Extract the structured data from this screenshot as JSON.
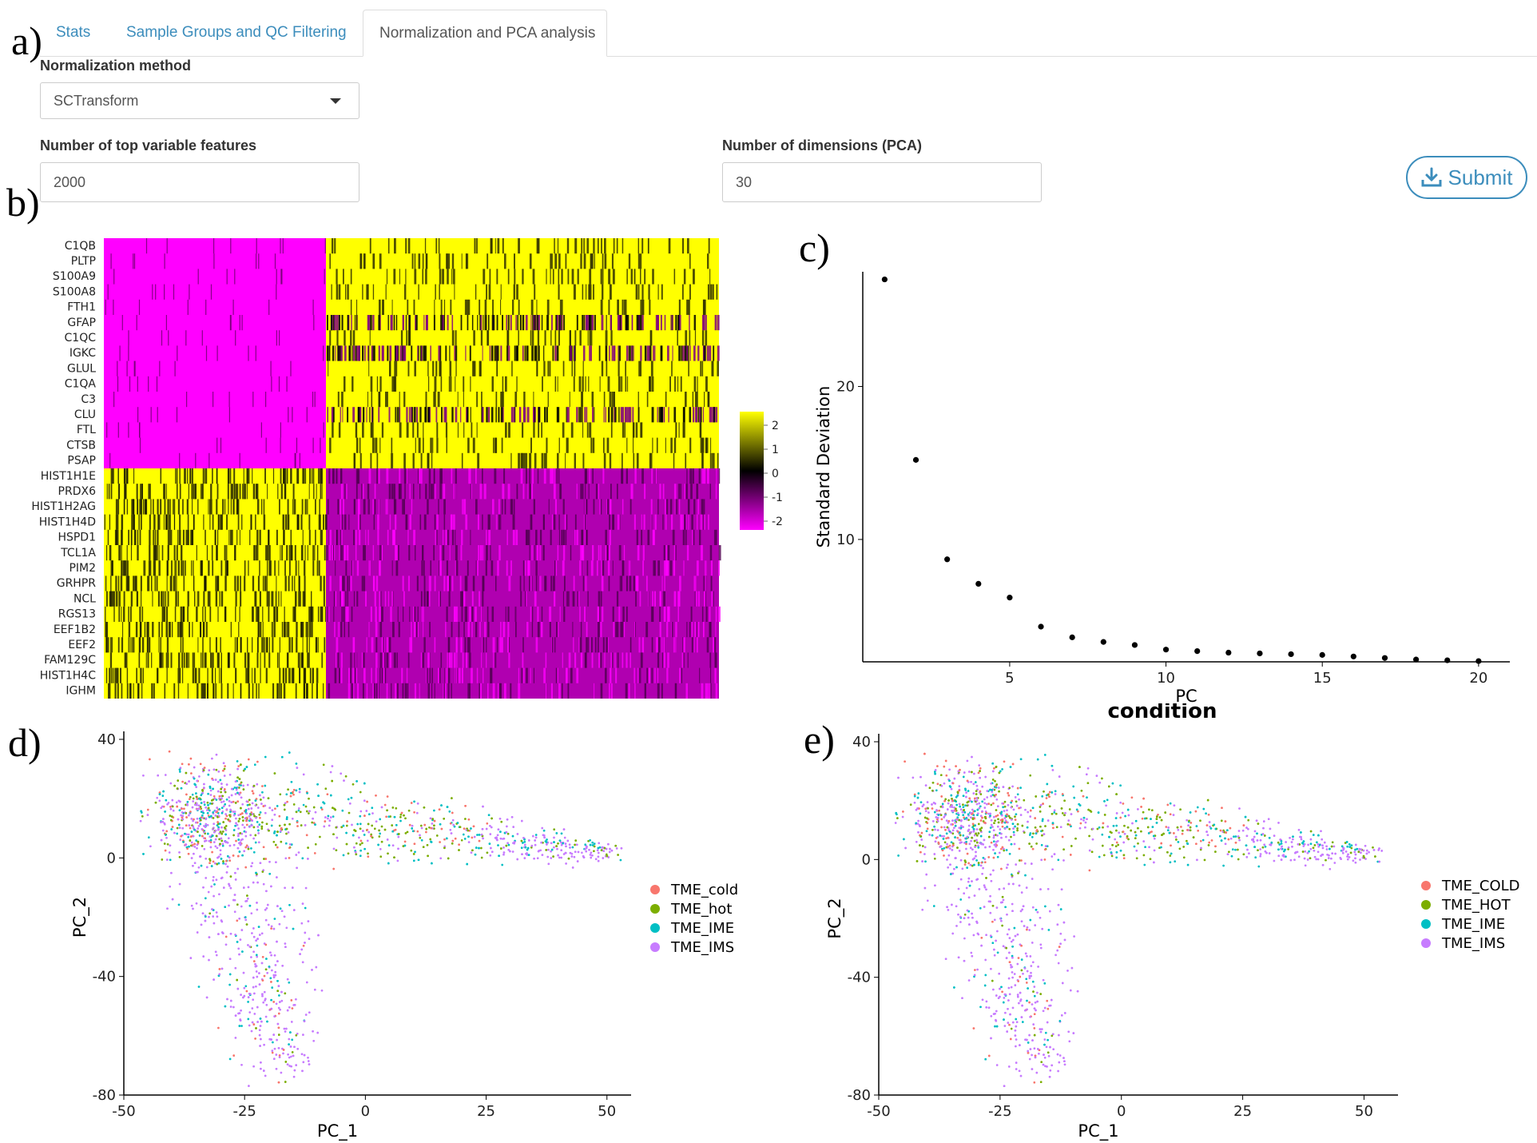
{
  "panel_letters": {
    "a": "a)",
    "b": "b)",
    "c": "c)",
    "d": "d)",
    "e": "e)"
  },
  "tabs": [
    {
      "label": "Stats",
      "active": false
    },
    {
      "label": "Sample Groups and QC Filtering",
      "active": false
    },
    {
      "label": "Normalization and PCA analysis",
      "active": true
    }
  ],
  "form": {
    "normalization": {
      "label": "Normalization method",
      "value": "SCTransform"
    },
    "top_features": {
      "label": "Number of top variable features",
      "value": "2000"
    },
    "pca_dims": {
      "label": "Number of dimensions (PCA)",
      "value": "30"
    },
    "submit_label": "Submit"
  },
  "colors": {
    "link": "#3c8dbc",
    "heat_high": "#ffff00",
    "heat_mid": "#000000",
    "heat_low": "#ff00ff",
    "series": {
      "cold": "#F8766D",
      "hot": "#7CAE00",
      "ime": "#00BFC4",
      "ims": "#C77CFF"
    }
  },
  "heatmap": {
    "genes": [
      "C1QB",
      "PLTP",
      "S100A9",
      "S100A8",
      "FTH1",
      "GFAP",
      "C1QC",
      "IGKC",
      "GLUL",
      "C1QA",
      "C3",
      "CLU",
      "FTL",
      "CTSB",
      "PSAP",
      "HIST1H1E",
      "PRDX6",
      "HIST1H2AG",
      "HIST1H4D",
      "HSPD1",
      "TCL1A",
      "PIM2",
      "GRHPR",
      "NCL",
      "RGS13",
      "EEF1B2",
      "EEF2",
      "FAM129C",
      "HIST1H4C",
      "IGHM"
    ],
    "legend_ticks": [
      "2",
      "1",
      "0",
      "-1",
      "-2"
    ]
  },
  "chart_data": [
    {
      "type": "scatter",
      "panel": "c",
      "title": "",
      "xlabel": "PC",
      "ylabel": "Standard Deviation",
      "xlim": [
        0.3,
        21
      ],
      "ylim": [
        2.0,
        27.5
      ],
      "xticks": [
        "5",
        "10",
        "15",
        "20"
      ],
      "yticks": [
        "10",
        "20"
      ],
      "x": [
        1,
        2,
        3,
        4,
        5,
        6,
        7,
        8,
        9,
        10,
        11,
        12,
        13,
        14,
        15,
        16,
        17,
        18,
        19,
        20
      ],
      "y": [
        27.0,
        15.2,
        8.7,
        7.1,
        6.2,
        4.3,
        3.6,
        3.3,
        3.1,
        2.8,
        2.7,
        2.6,
        2.55,
        2.5,
        2.45,
        2.35,
        2.25,
        2.15,
        2.1,
        2.05
      ]
    },
    {
      "type": "scatter",
      "panel": "d",
      "title": "",
      "xlabel": "PC_1",
      "ylabel": "PC_2",
      "xlim": [
        -50,
        55
      ],
      "ylim": [
        -80,
        40
      ],
      "xticks": [
        "-50",
        "-25",
        "0",
        "25",
        "50"
      ],
      "yticks": [
        "40",
        "0",
        "-40",
        "-80"
      ],
      "series": [
        {
          "name": "TME_cold",
          "color": "#F8766D"
        },
        {
          "name": "TME_hot",
          "color": "#7CAE00"
        },
        {
          "name": "TME_IME",
          "color": "#00BFC4"
        },
        {
          "name": "TME_IMS",
          "color": "#C77CFF"
        }
      ]
    },
    {
      "type": "scatter",
      "panel": "e",
      "title": "condition",
      "xlabel": "PC_1",
      "ylabel": "PC_2",
      "xlim": [
        -50,
        57
      ],
      "ylim": [
        -80,
        40
      ],
      "xticks": [
        "-50",
        "-25",
        "0",
        "25",
        "50"
      ],
      "yticks": [
        "40",
        "0",
        "-40",
        "-80"
      ],
      "series": [
        {
          "name": "TME_COLD",
          "color": "#F8766D"
        },
        {
          "name": "TME_HOT",
          "color": "#7CAE00"
        },
        {
          "name": "TME_IME",
          "color": "#00BFC4"
        },
        {
          "name": "TME_IMS",
          "color": "#C77CFF"
        }
      ]
    }
  ]
}
